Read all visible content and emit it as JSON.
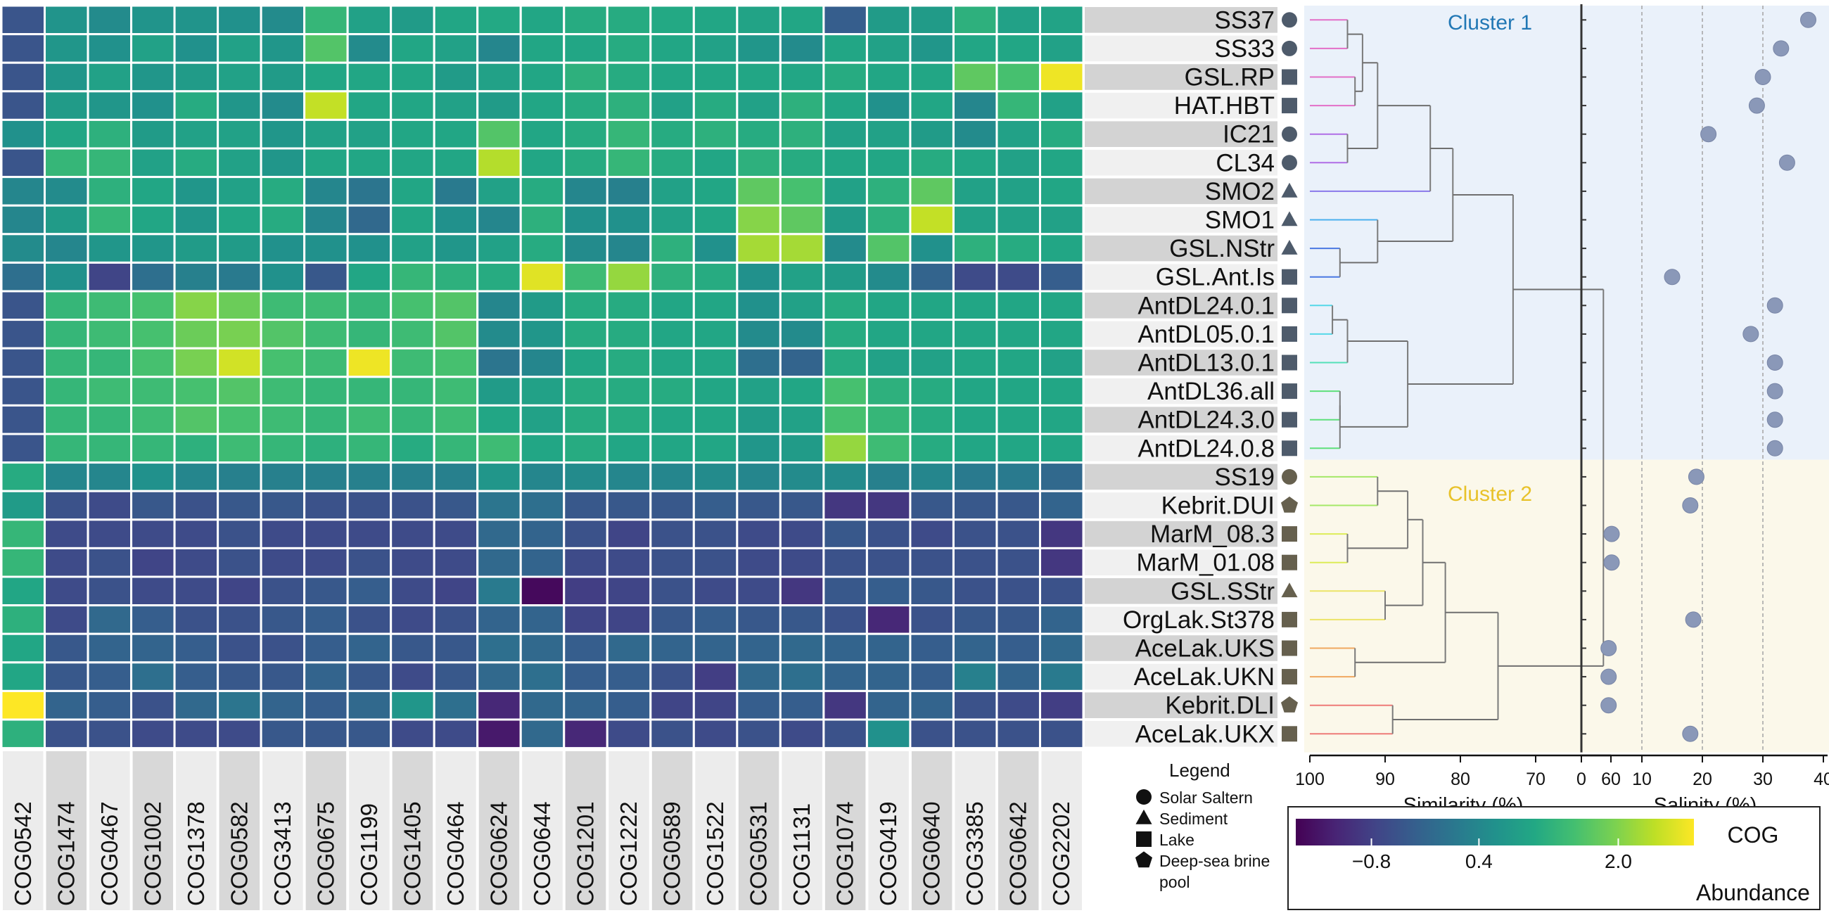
{
  "chart_data": {
    "type": "heatmap",
    "samples": [
      {
        "name": "SS37",
        "habitat": "circle",
        "salinity": 37.5,
        "cluster": 1
      },
      {
        "name": "SS33",
        "habitat": "circle",
        "salinity": 33,
        "cluster": 1
      },
      {
        "name": "GSL.RP",
        "habitat": "square",
        "salinity": 30,
        "cluster": 1
      },
      {
        "name": "HAT.HBT",
        "habitat": "square",
        "salinity": 29,
        "cluster": 1
      },
      {
        "name": "IC21",
        "habitat": "circle",
        "salinity": 21,
        "cluster": 1
      },
      {
        "name": "CL34",
        "habitat": "circle",
        "salinity": 34,
        "cluster": 1
      },
      {
        "name": "SMO2",
        "habitat": "triangle",
        "salinity": null,
        "cluster": 1
      },
      {
        "name": "SMO1",
        "habitat": "triangle",
        "salinity": null,
        "cluster": 1
      },
      {
        "name": "GSL.NStr",
        "habitat": "triangle",
        "salinity": null,
        "cluster": 1
      },
      {
        "name": "GSL.Ant.Is",
        "habitat": "square",
        "salinity": 15,
        "cluster": 1
      },
      {
        "name": "AntDL24.0.1",
        "habitat": "square",
        "salinity": 32,
        "cluster": 1
      },
      {
        "name": "AntDL05.0.1",
        "habitat": "square",
        "salinity": 28,
        "cluster": 1
      },
      {
        "name": "AntDL13.0.1",
        "habitat": "square",
        "salinity": 32,
        "cluster": 1
      },
      {
        "name": "AntDL36.all",
        "habitat": "square",
        "salinity": 32,
        "cluster": 1
      },
      {
        "name": "AntDL24.3.0",
        "habitat": "square",
        "salinity": 32,
        "cluster": 1
      },
      {
        "name": "AntDL24.0.8",
        "habitat": "square",
        "salinity": 32,
        "cluster": 1
      },
      {
        "name": "SS19",
        "habitat": "circle",
        "salinity": 19,
        "cluster": 2
      },
      {
        "name": "Kebrit.DUI",
        "habitat": "pentagon",
        "salinity": 18,
        "cluster": 2
      },
      {
        "name": "MarM_08.3",
        "habitat": "square",
        "salinity": 5,
        "cluster": 2
      },
      {
        "name": "MarM_01.08",
        "habitat": "square",
        "salinity": 5,
        "cluster": 2
      },
      {
        "name": "GSL.SStr",
        "habitat": "triangle",
        "salinity": null,
        "cluster": 2
      },
      {
        "name": "OrgLak.St378",
        "habitat": "square",
        "salinity": 18.5,
        "cluster": 2
      },
      {
        "name": "AceLak.UKS",
        "habitat": "square",
        "salinity": 4.5,
        "cluster": 2
      },
      {
        "name": "AceLak.UKN",
        "habitat": "square",
        "salinity": 4.5,
        "cluster": 2
      },
      {
        "name": "Kebrit.DLI",
        "habitat": "pentagon",
        "salinity": 4.5,
        "cluster": 2
      },
      {
        "name": "AceLak.UKX",
        "habitat": "square",
        "salinity": 18,
        "cluster": 2
      }
    ],
    "cogs": [
      "COG0542",
      "COG1474",
      "COG0467",
      "COG1002",
      "COG1378",
      "COG0582",
      "COG3413",
      "COG0675",
      "COG1199",
      "COG1405",
      "COG0464",
      "COG0624",
      "COG0644",
      "COG1201",
      "COG1222",
      "COG0589",
      "COG1522",
      "COG0531",
      "COG1131",
      "COG1074",
      "COG0419",
      "COG0640",
      "COG3385",
      "COG0642",
      "COG2202"
    ],
    "abundance_matrix": [
      [
        -0.85,
        0.25,
        0.1,
        0.25,
        0.25,
        0.2,
        0.1,
        0.9,
        0.5,
        0.4,
        0.6,
        0.65,
        0.6,
        0.7,
        0.7,
        0.65,
        0.6,
        0.55,
        0.6,
        -0.7,
        0.4,
        0.4,
        0.8,
        0.5,
        0.55
      ],
      [
        -0.85,
        0.3,
        0.2,
        0.5,
        0.2,
        0.5,
        0.3,
        1.2,
        0.1,
        0.6,
        0.5,
        0.0,
        0.6,
        0.6,
        0.7,
        0.6,
        0.5,
        0.3,
        0.1,
        0.6,
        0.5,
        0.3,
        0.6,
        0.6,
        0.5
      ],
      [
        -0.85,
        0.3,
        0.5,
        0.3,
        0.4,
        0.5,
        0.4,
        0.6,
        0.6,
        0.6,
        0.4,
        0.5,
        0.6,
        0.8,
        0.7,
        0.6,
        0.6,
        0.6,
        0.6,
        0.7,
        0.6,
        0.6,
        1.3,
        1.1,
        2.3
      ],
      [
        -0.85,
        0.4,
        0.3,
        0.2,
        0.7,
        0.3,
        0.1,
        2.0,
        0.6,
        0.6,
        0.5,
        0.4,
        0.6,
        0.7,
        0.8,
        0.5,
        0.7,
        0.5,
        0.8,
        0.6,
        0.2,
        0.6,
        0.0,
        0.9,
        0.5
      ],
      [
        0.2,
        0.6,
        0.8,
        0.4,
        0.5,
        0.5,
        0.3,
        0.5,
        0.5,
        0.6,
        0.6,
        1.2,
        0.6,
        0.7,
        0.9,
        0.7,
        0.8,
        0.7,
        0.8,
        0.5,
        0.5,
        0.4,
        0.1,
        0.5,
        0.7
      ],
      [
        -0.85,
        0.9,
        0.9,
        0.5,
        0.7,
        0.5,
        0.3,
        0.6,
        0.6,
        0.6,
        0.6,
        1.9,
        0.6,
        0.7,
        0.9,
        0.7,
        0.6,
        0.8,
        0.7,
        0.6,
        0.6,
        0.7,
        0.6,
        0.5,
        0.6
      ],
      [
        0.0,
        0.1,
        0.8,
        0.6,
        0.3,
        0.5,
        0.7,
        0.0,
        -0.3,
        0.6,
        -0.2,
        0.5,
        0.7,
        0.0,
        -0.1,
        0.5,
        0.6,
        1.3,
        1.1,
        0.5,
        0.8,
        1.3,
        0.5,
        0.5,
        0.6
      ],
      [
        0.0,
        0.4,
        0.9,
        0.6,
        0.3,
        0.6,
        0.7,
        0.0,
        -0.5,
        0.6,
        0.2,
        0.0,
        0.8,
        0.2,
        0.2,
        0.5,
        0.6,
        1.6,
        1.3,
        0.4,
        0.8,
        2.0,
        0.5,
        0.5,
        0.5
      ],
      [
        0.1,
        0.0,
        0.3,
        0.3,
        0.4,
        0.4,
        0.2,
        0.2,
        0.2,
        0.5,
        0.3,
        0.5,
        0.7,
        0.1,
        0.0,
        0.8,
        0.2,
        1.8,
        1.8,
        0.1,
        1.2,
        0.2,
        0.8,
        0.7,
        0.6
      ],
      [
        -0.4,
        0.2,
        -1.1,
        -0.4,
        -0.1,
        -0.2,
        0.2,
        -0.8,
        0.6,
        0.9,
        0.8,
        0.7,
        2.2,
        1.0,
        1.7,
        0.8,
        0.7,
        0.2,
        0.5,
        0.4,
        0.1,
        -0.6,
        -1.0,
        -1.0,
        -0.7
      ],
      [
        -0.85,
        0.9,
        1.0,
        1.1,
        1.6,
        1.4,
        1.0,
        1.0,
        0.9,
        1.1,
        1.2,
        0.0,
        0.4,
        0.7,
        0.7,
        0.6,
        0.6,
        0.2,
        0.5,
        0.7,
        0.6,
        0.6,
        0.6,
        0.6,
        0.6
      ],
      [
        -0.85,
        0.9,
        1.0,
        1.1,
        1.4,
        1.5,
        1.2,
        1.0,
        0.9,
        1.0,
        1.2,
        0.1,
        0.3,
        0.7,
        0.7,
        0.6,
        0.6,
        0.1,
        0.1,
        0.7,
        0.6,
        0.6,
        0.6,
        0.6,
        0.6
      ],
      [
        -0.85,
        0.9,
        0.9,
        1.1,
        1.5,
        2.1,
        1.1,
        1.0,
        2.3,
        1.0,
        1.1,
        -0.3,
        0.0,
        0.6,
        0.7,
        0.6,
        0.6,
        -0.4,
        -0.6,
        0.7,
        0.5,
        0.5,
        0.6,
        0.6,
        0.5
      ],
      [
        -0.85,
        0.9,
        1.0,
        1.0,
        1.1,
        1.2,
        1.0,
        0.9,
        0.9,
        0.9,
        1.0,
        0.4,
        0.5,
        0.7,
        0.7,
        0.7,
        0.6,
        0.5,
        0.6,
        1.1,
        0.8,
        0.7,
        0.6,
        0.6,
        0.6
      ],
      [
        -0.85,
        0.9,
        0.9,
        1.0,
        1.2,
        1.1,
        1.0,
        0.9,
        1.0,
        0.9,
        1.0,
        0.6,
        0.5,
        0.7,
        0.7,
        0.6,
        0.6,
        0.4,
        0.5,
        1.1,
        0.9,
        0.7,
        0.6,
        0.6,
        0.6
      ],
      [
        -0.85,
        0.9,
        0.9,
        0.9,
        0.8,
        1.0,
        0.9,
        0.8,
        0.9,
        0.7,
        0.9,
        1.0,
        0.6,
        0.7,
        0.6,
        0.6,
        0.6,
        0.3,
        0.4,
        1.7,
        1.0,
        0.7,
        0.6,
        0.6,
        0.6
      ],
      [
        0.7,
        0.0,
        0.0,
        0.2,
        0.0,
        -0.1,
        -0.1,
        -0.1,
        -0.1,
        -0.1,
        -0.1,
        0.3,
        0.0,
        0.1,
        0.0,
        0.0,
        0.1,
        0.0,
        0.1,
        0.1,
        -0.1,
        0.0,
        -0.2,
        -0.2,
        -0.5
      ],
      [
        0.4,
        -0.9,
        -1.0,
        -0.8,
        -0.9,
        -0.8,
        -0.8,
        -0.9,
        -0.9,
        -0.9,
        -0.8,
        -0.3,
        -0.4,
        -0.8,
        -0.8,
        -0.8,
        -0.7,
        -0.8,
        -0.8,
        -1.3,
        -1.3,
        -0.8,
        -0.8,
        -0.8,
        -0.6
      ],
      [
        0.9,
        -1.0,
        -1.0,
        -1.0,
        -1.0,
        -0.9,
        -1.0,
        -1.0,
        -1.0,
        -1.0,
        -1.0,
        -0.5,
        -0.6,
        -0.9,
        -1.1,
        -0.9,
        -0.9,
        -1.0,
        -1.0,
        -0.8,
        -0.9,
        -1.0,
        -0.9,
        -0.9,
        -1.3
      ],
      [
        0.9,
        -1.0,
        -0.9,
        -1.1,
        -1.0,
        -0.9,
        -1.0,
        -1.0,
        -0.9,
        -1.0,
        -1.0,
        -0.5,
        -0.6,
        -1.0,
        -1.0,
        -0.9,
        -0.9,
        -1.0,
        -1.0,
        -0.9,
        -0.9,
        -0.9,
        -0.9,
        -0.9,
        -1.3
      ],
      [
        0.6,
        -1.0,
        -0.9,
        -1.0,
        -1.0,
        -1.1,
        -0.9,
        -0.8,
        -0.7,
        -1.0,
        -1.1,
        -0.2,
        -1.9,
        -1.2,
        -1.1,
        -0.9,
        -1.0,
        -1.0,
        -1.3,
        -0.8,
        -0.7,
        -0.8,
        -0.9,
        -0.9,
        -0.9
      ],
      [
        0.8,
        -1.0,
        -0.5,
        -0.7,
        -0.9,
        -0.9,
        -0.8,
        -0.7,
        -0.9,
        -1.0,
        -0.9,
        -0.6,
        -0.6,
        -1.1,
        -1.1,
        -0.8,
        -0.7,
        -0.8,
        -0.8,
        -0.9,
        -1.5,
        -0.9,
        -0.8,
        -0.8,
        -0.6
      ],
      [
        0.6,
        -0.8,
        -0.6,
        -0.6,
        -0.7,
        -0.9,
        -0.9,
        -0.7,
        -0.6,
        -0.8,
        -0.8,
        -0.4,
        -0.5,
        -0.7,
        -0.5,
        -0.6,
        -0.6,
        -0.6,
        -0.5,
        -0.6,
        -0.6,
        -0.7,
        -0.6,
        -0.7,
        -0.5
      ],
      [
        0.6,
        -0.8,
        -0.7,
        -0.4,
        -0.7,
        -0.8,
        -0.8,
        -0.6,
        -0.8,
        -1.0,
        -0.8,
        -0.5,
        -0.4,
        -0.7,
        -0.7,
        -0.9,
        -1.2,
        -0.5,
        -0.4,
        -0.6,
        -0.6,
        -0.7,
        -0.1,
        -0.6,
        -0.2
      ],
      [
        2.4,
        -0.6,
        -0.7,
        -0.9,
        -0.5,
        -0.3,
        -0.6,
        -0.7,
        -0.5,
        0.3,
        -0.4,
        -1.5,
        -0.5,
        -0.6,
        -0.7,
        -1.1,
        -1.1,
        -0.7,
        -0.7,
        -1.3,
        -0.6,
        -0.6,
        -0.9,
        -1.0,
        -1.2
      ],
      [
        0.8,
        -0.9,
        -0.9,
        -1.0,
        -1.0,
        -1.0,
        -0.8,
        -0.8,
        -0.8,
        -1.0,
        -1.0,
        -1.7,
        -0.5,
        -1.5,
        -1.0,
        -0.9,
        -1.0,
        -0.9,
        -1.0,
        -0.9,
        0.2,
        -0.9,
        -0.9,
        -0.9,
        -0.9
      ]
    ],
    "dendrogram": {
      "merges": [
        {
          "a": 0,
          "b": 1,
          "height": 95
        },
        {
          "a": 2,
          "b": 3,
          "height": 94
        },
        {
          "a": "n0",
          "b": "n1",
          "height": 93
        },
        {
          "a": 4,
          "b": 5,
          "height": 95
        },
        {
          "a": "n2",
          "b": "n3",
          "height": 91
        },
        {
          "a": "n4",
          "b": 6,
          "height": 84
        },
        {
          "a": 8,
          "b": 9,
          "height": 96
        },
        {
          "a": 7,
          "b": "n6",
          "height": 91
        },
        {
          "a": "n5",
          "b": "n7",
          "height": 81
        },
        {
          "a": 10,
          "b": 11,
          "height": 97
        },
        {
          "a": "n9",
          "b": 12,
          "height": 95
        },
        {
          "a": 13,
          "b": 14,
          "height": 96
        },
        {
          "a": "n11",
          "b": 15,
          "height": 96
        },
        {
          "a": "n10",
          "b": "n12",
          "height": 87
        },
        {
          "a": "n8",
          "b": "n13",
          "height": 73
        },
        {
          "a": 16,
          "b": 17,
          "height": 91
        },
        {
          "a": 18,
          "b": 19,
          "height": 95
        },
        {
          "a": "n15",
          "b": "n16",
          "height": 87
        },
        {
          "a": 20,
          "b": 21,
          "height": 90
        },
        {
          "a": "n17",
          "b": "n18",
          "height": 85
        },
        {
          "a": 22,
          "b": 23,
          "height": 94
        },
        {
          "a": "n19",
          "b": "n20",
          "height": 82
        },
        {
          "a": 24,
          "b": 25,
          "height": 89
        },
        {
          "a": "n21",
          "b": "n22",
          "height": 75
        },
        {
          "a": "n14",
          "b": "n23",
          "height": 61
        }
      ],
      "leaf_colors": [
        "#e36fc7",
        "#e36fc7",
        "#e36fc7",
        "#e36fc7",
        "#b06ee6",
        "#b06ee6",
        "#8a78ea",
        "#4ab0ee",
        "#4a78e2",
        "#4a78e2",
        "#54d8e8",
        "#54d8e8",
        "#54e0b8",
        "#5ee07a",
        "#5ee07a",
        "#5ee07a",
        "#a4e868",
        "#a4e868",
        "#dcec58",
        "#dcec58",
        "#ece468",
        "#ece468",
        "#f0a860",
        "#f0a860",
        "#ee7b78",
        "#ee7b78"
      ]
    },
    "similarity_axis": {
      "label": "Similarity (%)",
      "range": [
        100,
        60
      ],
      "ticks": [
        "100",
        "90",
        "80",
        "70",
        "60"
      ]
    },
    "salinity_axis": {
      "label": "Salinity (%)",
      "range": [
        0,
        40
      ],
      "ticks": [
        "0",
        "10",
        "20",
        "30",
        "40"
      ],
      "gridlines": [
        10,
        20,
        30
      ]
    },
    "clusters": [
      {
        "label": "Cluster 1",
        "color": "#2278b5",
        "bg": "#eaf1fa"
      },
      {
        "label": "Cluster 2",
        "color": "#e8c22a",
        "bg": "#fbf8ea"
      }
    ],
    "legend": {
      "title": "Legend",
      "items": [
        {
          "shape": "circle",
          "label": "Solar Saltern"
        },
        {
          "shape": "triangle",
          "label": "Sediment"
        },
        {
          "shape": "square",
          "label": "Lake"
        },
        {
          "shape": "pentagon",
          "label": "Deep-sea brine pool"
        }
      ]
    },
    "colorbar": {
      "title": "COG Abundance",
      "ticks": [
        "−0.8",
        "0.4",
        "2.0"
      ],
      "range": [
        -2,
        2.4
      ]
    }
  }
}
